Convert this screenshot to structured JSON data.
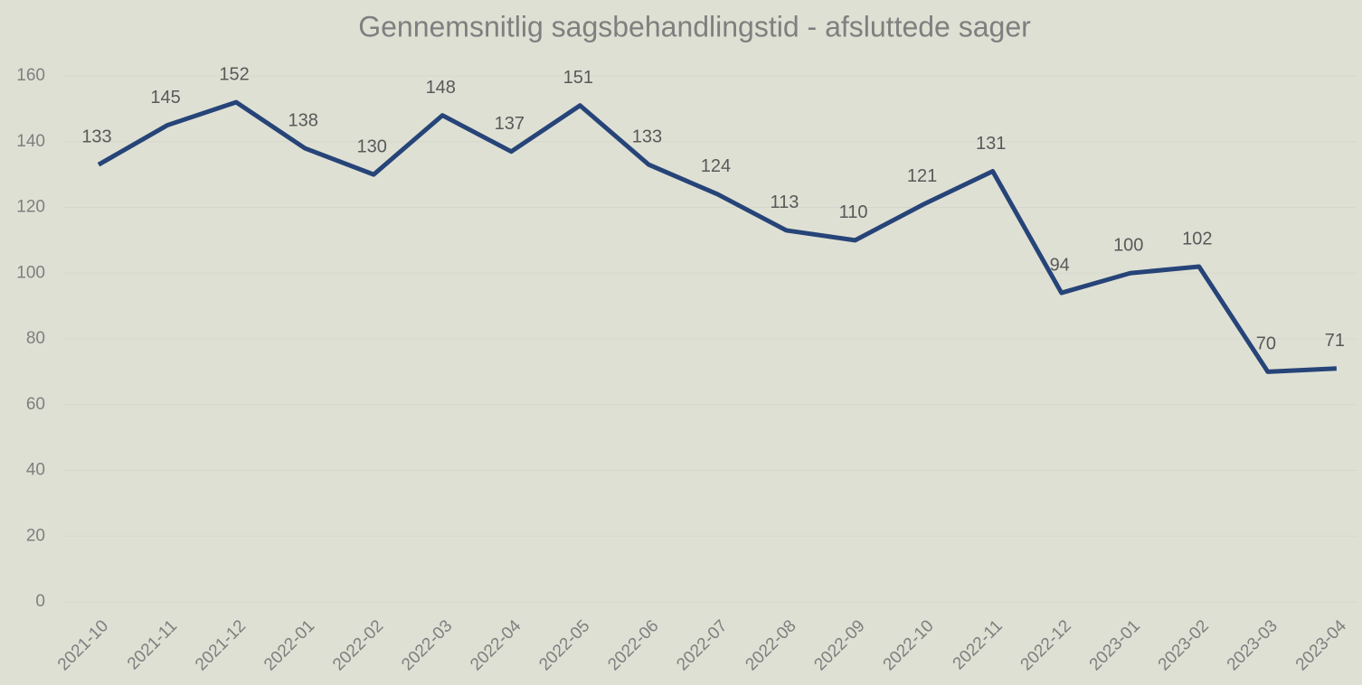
{
  "chart_data": {
    "type": "line",
    "title": "Gennemsnitlig sagsbehandlingstid - afsluttede sager",
    "categories": [
      "2021-10",
      "2021-11",
      "2021-12",
      "2022-01",
      "2022-02",
      "2022-03",
      "2022-04",
      "2022-05",
      "2022-06",
      "2022-07",
      "2022-08",
      "2022-09",
      "2022-10",
      "2022-11",
      "2022-12",
      "2023-01",
      "2023-02",
      "2023-03",
      "2023-04"
    ],
    "series": [
      {
        "color": "#264478",
        "values": [
          133,
          145,
          152,
          138,
          130,
          148,
          137,
          151,
          133,
          124,
          113,
          110,
          121,
          131,
          94,
          100,
          102,
          70,
          71
        ]
      }
    ],
    "ylim": [
      0,
      160
    ],
    "yticks": [
      0,
      20,
      40,
      60,
      80,
      100,
      120,
      140,
      160
    ],
    "grid": true
  }
}
